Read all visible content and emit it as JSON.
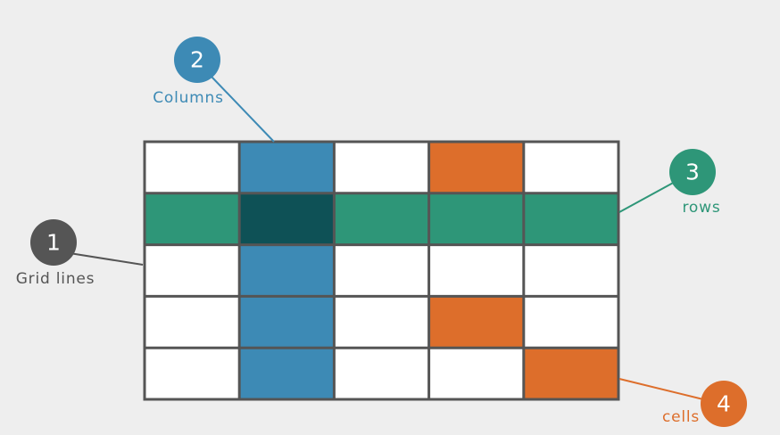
{
  "colors": {
    "background": "#eeeeee",
    "grid_line": "#555555",
    "empty_cell": "#ffffff",
    "column": "#3d8ab5",
    "row": "#2e9678",
    "intersection": "#0e5156",
    "cells": "#dd6e2b",
    "grid_lines_callout": "#555555"
  },
  "grid": {
    "rows": 5,
    "columns": 5,
    "highlighted_column": 2,
    "highlighted_row": 2,
    "highlighted_cells": [
      [
        1,
        4
      ],
      [
        4,
        4
      ],
      [
        5,
        5
      ]
    ]
  },
  "callouts": [
    {
      "id": "grid-lines",
      "number": "1",
      "label": "Grid lines",
      "color_key": "grid_lines_callout"
    },
    {
      "id": "columns",
      "number": "2",
      "label": "Columns",
      "color_key": "column"
    },
    {
      "id": "rows",
      "number": "3",
      "label": "rows",
      "color_key": "row"
    },
    {
      "id": "cells",
      "number": "4",
      "label": "cells",
      "color_key": "cells"
    }
  ]
}
